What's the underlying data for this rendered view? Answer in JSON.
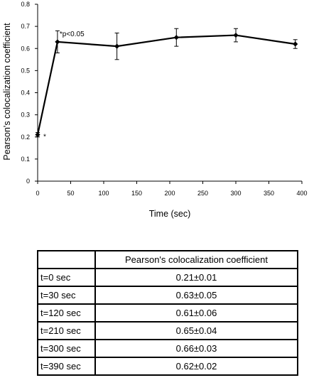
{
  "chart_data": {
    "type": "line",
    "xlabel": "Time (sec)",
    "ylabel": "Pearson's colocalization coefficient",
    "xlim": [
      0,
      400
    ],
    "ylim": [
      0,
      0.8
    ],
    "xticks": [
      0,
      50,
      100,
      150,
      200,
      250,
      300,
      350,
      400
    ],
    "yticks": [
      0,
      0.1,
      0.2,
      0.3,
      0.4,
      0.5,
      0.6,
      0.7,
      0.8
    ],
    "xtick_labels": [
      "0",
      "50",
      "100",
      "150",
      "200",
      "250",
      "300",
      "350",
      "400"
    ],
    "ytick_labels": [
      "0",
      "0.1",
      "0.2",
      "0.3",
      "0.4",
      "0.5",
      "0.6",
      "0.7",
      "0.8"
    ],
    "grid": false,
    "series": [
      {
        "x": [
          0,
          30,
          120,
          210,
          300,
          390
        ],
        "y": [
          0.21,
          0.63,
          0.61,
          0.65,
          0.66,
          0.62
        ],
        "error": [
          0.01,
          0.05,
          0.06,
          0.04,
          0.03,
          0.02
        ],
        "marker": "diamond",
        "color": "#000000"
      }
    ],
    "annotations": [
      {
        "text": "*",
        "x": 0,
        "y": 0.21
      },
      {
        "text": "*p<0.05",
        "x": 30,
        "y": 0.63
      }
    ]
  },
  "table": {
    "header": [
      "",
      "Pearson's colocalization coefficient"
    ],
    "rows": [
      [
        "t=0 sec",
        "0.21±0.01"
      ],
      [
        "t=30 sec",
        "0.63±0.05"
      ],
      [
        "t=120 sec",
        "0.61±0.06"
      ],
      [
        "t=210 sec",
        "0.65±0.04"
      ],
      [
        "t=300 sec",
        "0.66±0.03"
      ],
      [
        "t=390 sec",
        "0.62±0.02"
      ]
    ]
  }
}
